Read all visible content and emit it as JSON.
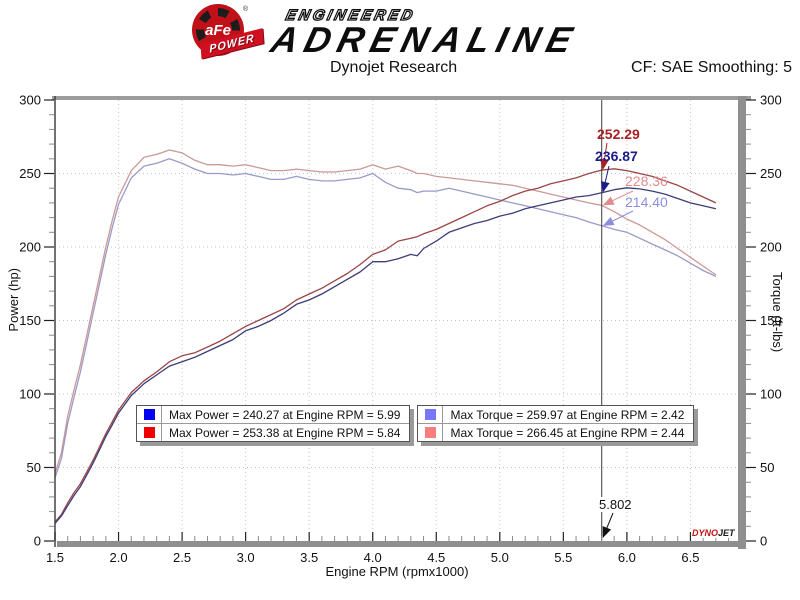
{
  "header": {
    "brand": {
      "circle_text": "aFe",
      "registered": "®",
      "banner_text": "POWER",
      "tagline_top": "ENGINEERED",
      "tagline_main": "ADRENALINE"
    },
    "correction_factor": "CF: SAE Smoothing: 5"
  },
  "watermark": {
    "part1": "DYNO",
    "part2": "JET"
  },
  "legend": {
    "items": [
      {
        "color": "#0202f0",
        "label": "Max Power = 240.27 at Engine RPM = 5.99"
      },
      {
        "color": "#ee0202",
        "label": "Max Power = 253.38 at Engine RPM = 5.84"
      },
      {
        "color": "#7878f6",
        "label": "Max Torque = 259.97 at Engine RPM = 2.42"
      },
      {
        "color": "#f87e7e",
        "label": "Max Torque = 266.45 at Engine RPM = 2.44"
      }
    ]
  },
  "chart_data": {
    "type": "line",
    "title": "Dynojet Research",
    "xlabel": "Engine RPM (rpmx1000)",
    "ylabel_left": "Power (hp)",
    "ylabel_right": "Torque (ft-lbs)",
    "xlim": [
      1.5,
      6.89
    ],
    "ylim": [
      0,
      300
    ],
    "x_major_ticks": [
      1.5,
      2.0,
      2.5,
      3.0,
      3.5,
      4.0,
      4.5,
      5.0,
      5.5,
      6.0,
      6.5
    ],
    "x_minor_step": 0.1,
    "y_major_step": 50,
    "y_minor_step": 10,
    "grid": "dotted-major",
    "legend_position": "bottom-center-inside",
    "cursor": {
      "rpm": 5.802,
      "label": "5.802",
      "readouts": [
        {
          "value": "252.29",
          "color": "#a52020",
          "series": "power_modified"
        },
        {
          "value": "236.87",
          "color": "#1c1c8a",
          "series": "power_stock"
        },
        {
          "value": "228.36",
          "color": "#df8d8d",
          "series": "torque_modified"
        },
        {
          "value": "214.40",
          "color": "#8d8dde",
          "series": "torque_stock"
        }
      ]
    },
    "x": [
      1.5,
      1.55,
      1.6,
      1.65,
      1.7,
      1.75,
      1.8,
      1.85,
      1.9,
      1.95,
      2.0,
      2.1,
      2.2,
      2.3,
      2.4,
      2.5,
      2.6,
      2.7,
      2.8,
      2.9,
      3.0,
      3.1,
      3.2,
      3.3,
      3.4,
      3.5,
      3.6,
      3.7,
      3.8,
      3.9,
      4.0,
      4.1,
      4.2,
      4.3,
      4.35,
      4.4,
      4.5,
      4.6,
      4.7,
      4.8,
      4.9,
      5.0,
      5.1,
      5.2,
      5.3,
      5.4,
      5.5,
      5.6,
      5.7,
      5.802,
      5.9,
      6.0,
      6.1,
      6.2,
      6.3,
      6.4,
      6.5,
      6.6,
      6.7
    ],
    "series": [
      {
        "name": "torque_modified",
        "unit": "ft-lbs",
        "axis": "right",
        "color": "#cc9898",
        "peak": {
          "value": 266.45,
          "rpm": 2.44
        },
        "y": [
          46,
          60,
          85,
          103,
          120,
          140,
          160,
          180,
          200,
          218,
          234,
          252,
          261,
          263,
          266,
          264,
          259,
          256,
          256,
          255,
          256,
          254,
          252,
          252,
          253,
          252,
          251,
          251,
          252,
          253,
          256,
          253,
          255,
          252,
          250,
          250,
          248,
          247,
          246,
          245,
          244,
          243,
          242,
          240,
          238,
          236,
          234,
          232,
          230,
          228.4,
          224,
          219,
          215,
          210,
          205,
          199,
          193,
          187,
          181
        ]
      },
      {
        "name": "torque_stock",
        "unit": "ft-lbs",
        "axis": "right",
        "color": "#9a9ac8",
        "peak": {
          "value": 259.97,
          "rpm": 2.42
        },
        "y": [
          43,
          56,
          80,
          98,
          115,
          135,
          155,
          175,
          195,
          213,
          229,
          247,
          255,
          257,
          260,
          257,
          253,
          250,
          250,
          249,
          250,
          248,
          246,
          246,
          248,
          246,
          245,
          245,
          246,
          247,
          250,
          244,
          240,
          239,
          237,
          238,
          238,
          240,
          238,
          236,
          234,
          232,
          230,
          228,
          226,
          224,
          222,
          220,
          217,
          214.4,
          212,
          210,
          206,
          202,
          198,
          194,
          189,
          184,
          180
        ]
      },
      {
        "name": "power_modified",
        "unit": "hp",
        "axis": "left",
        "color": "#9a4646",
        "peak": {
          "value": 253.38,
          "rpm": 5.84
        },
        "y": [
          13,
          18,
          26,
          33,
          39,
          47,
          55,
          64,
          73,
          81,
          89,
          101,
          109,
          115,
          122,
          126,
          128,
          132,
          136,
          141,
          146,
          150,
          154,
          158,
          164,
          168,
          172,
          177,
          182,
          188,
          195,
          198,
          204,
          206,
          207,
          209,
          212,
          216,
          220,
          224,
          228,
          231,
          235,
          238,
          240,
          243,
          245,
          247,
          250,
          252.3,
          253.2,
          252,
          250,
          248,
          245,
          242,
          238,
          234,
          230
        ]
      },
      {
        "name": "power_stock",
        "unit": "hp",
        "axis": "left",
        "color": "#3c3c78",
        "peak": {
          "value": 240.27,
          "rpm": 5.99
        },
        "y": [
          12,
          17,
          24,
          31,
          37,
          45,
          53,
          62,
          71,
          79,
          87,
          99,
          107,
          113,
          119,
          122,
          125,
          129,
          133,
          137,
          143,
          146,
          150,
          155,
          161,
          164,
          168,
          173,
          178,
          183,
          190,
          190,
          192,
          195,
          194,
          199,
          204,
          210,
          213,
          216,
          218,
          221,
          223,
          226,
          228,
          230,
          232,
          234,
          235,
          236.9,
          239,
          240.3,
          239.5,
          238,
          236,
          233,
          230,
          228,
          226
        ]
      }
    ]
  }
}
